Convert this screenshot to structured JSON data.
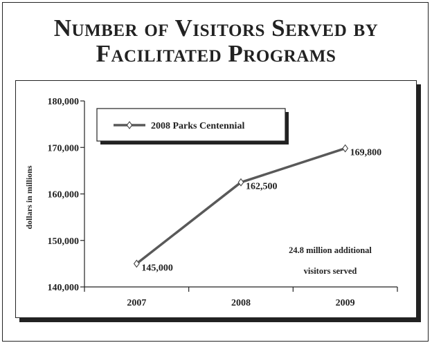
{
  "title_lines": [
    "Number of Visitors Served by",
    "Facilitated Programs"
  ],
  "chart_data": {
    "type": "line",
    "categories": [
      "2007",
      "2008",
      "2009"
    ],
    "series": [
      {
        "name": "2008 Parks Centennial",
        "values": [
          145000,
          162500,
          169800
        ],
        "color": "#595959"
      }
    ],
    "data_labels": [
      "145,000",
      "162,500",
      "169,800"
    ],
    "ylabel": "dollars in millions",
    "ylim": [
      140000,
      180000
    ],
    "yticks": [
      140000,
      150000,
      160000,
      170000,
      180000
    ],
    "ytick_labels": [
      "140,000",
      "150,000",
      "160,000",
      "170,000",
      "180,000"
    ],
    "annotation_lines": [
      "24.8 million additional",
      "visitors served"
    ],
    "legend_position": "top-left",
    "marker": "diamond",
    "grid": false
  }
}
